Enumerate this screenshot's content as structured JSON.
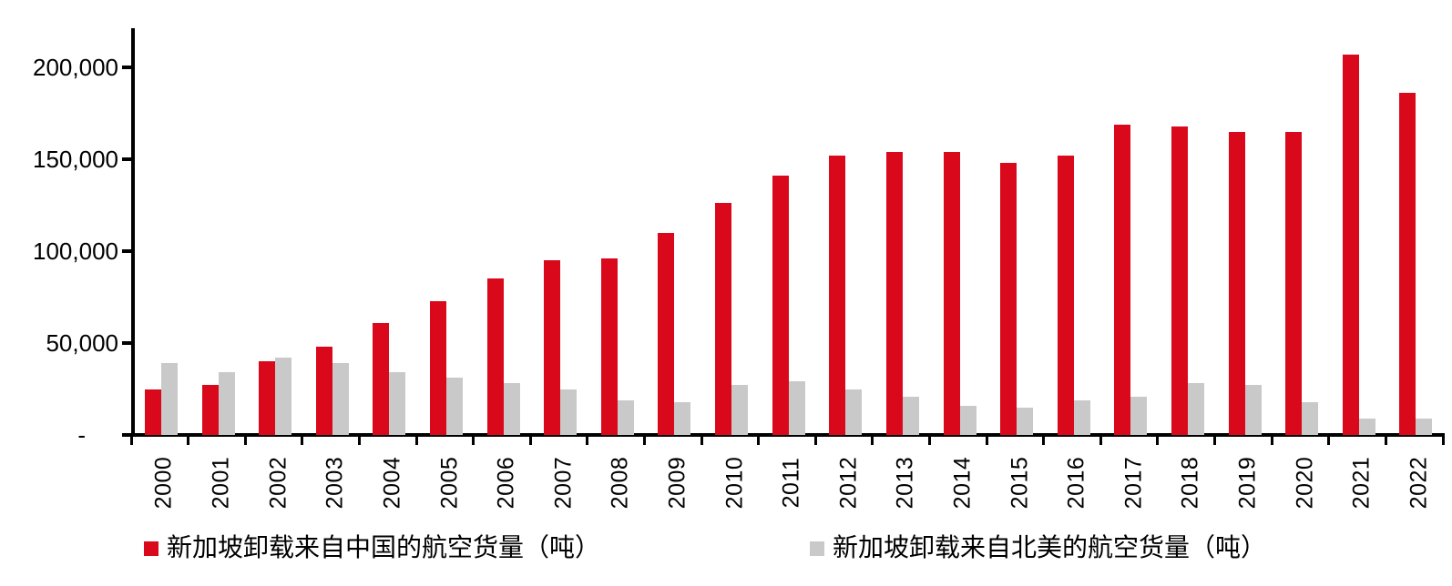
{
  "chart_data": {
    "type": "bar",
    "title": "",
    "xlabel": "",
    "ylabel": "",
    "grid": false,
    "legend_position": "bottom",
    "categories": [
      "2000",
      "2001",
      "2002",
      "2003",
      "2004",
      "2005",
      "2006",
      "2007",
      "2008",
      "2009",
      "2010",
      "2011",
      "2012",
      "2013",
      "2014",
      "2015",
      "2016",
      "2017",
      "2018",
      "2019",
      "2020",
      "2021",
      "2022"
    ],
    "series": [
      {
        "name": "新加坡卸载来自中国的航空货量（吨）",
        "color": "#D9091B",
        "values": [
          25000,
          27000,
          40000,
          48000,
          61000,
          73000,
          85000,
          95000,
          96000,
          110000,
          126000,
          141000,
          152000,
          154000,
          154000,
          148000,
          152000,
          169000,
          168000,
          165000,
          165000,
          207000,
          186000
        ]
      },
      {
        "name": "新加坡卸载来自北美的航空货量（吨）",
        "color": "#C9C9C9",
        "values": [
          39000,
          34000,
          42000,
          39000,
          34000,
          31000,
          28000,
          25000,
          19000,
          18000,
          27000,
          29000,
          25000,
          21000,
          16000,
          15000,
          19000,
          21000,
          28000,
          27000,
          18000,
          9000,
          9000
        ]
      }
    ],
    "y_axis": {
      "ylim": [
        0,
        215000
      ],
      "ticks": [
        {
          "value": 200000,
          "label": "200,000"
        },
        {
          "value": 150000,
          "label": "150,000"
        },
        {
          "value": 100000,
          "label": "100,000"
        },
        {
          "value": 50000,
          "label": "50,000"
        },
        {
          "value": 0,
          "label": "-"
        }
      ]
    }
  },
  "colors": {
    "axis": "#000000",
    "background": "#ffffff"
  }
}
